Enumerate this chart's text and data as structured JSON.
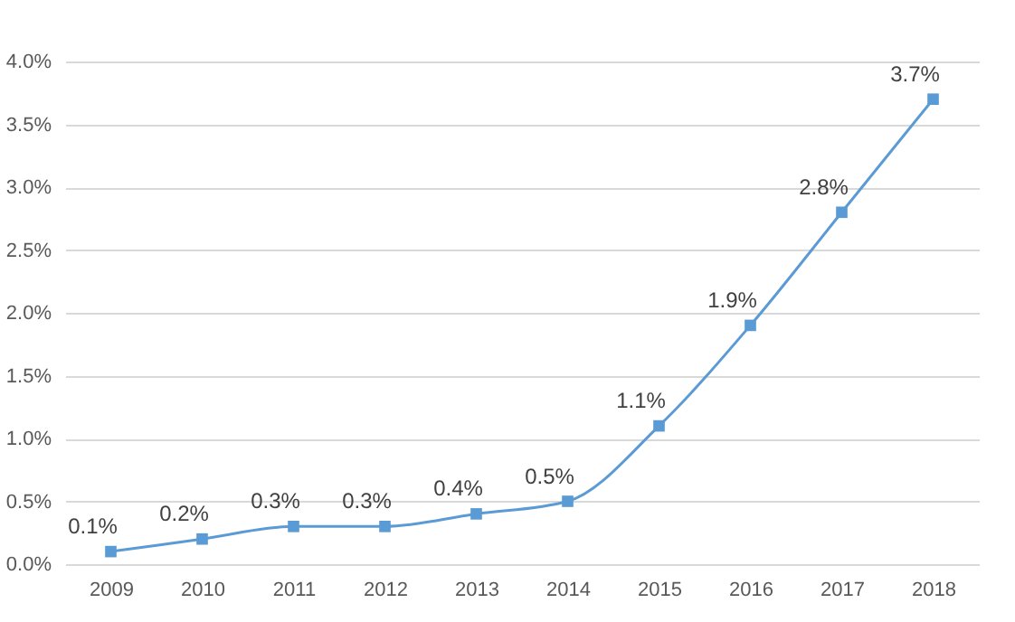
{
  "chart_data": {
    "type": "line",
    "categories": [
      "2009",
      "2010",
      "2011",
      "2012",
      "2013",
      "2014",
      "2015",
      "2016",
      "2017",
      "2018"
    ],
    "series": [
      {
        "color": "#5b9bd5",
        "values": [
          0.1,
          0.2,
          0.3,
          0.3,
          0.4,
          0.5,
          1.1,
          1.9,
          2.8,
          3.7
        ],
        "value_labels": [
          "0.1%",
          "0.2%",
          "0.3%",
          "0.3%",
          "0.4%",
          "0.5%",
          "1.1%",
          "1.9%",
          "2.8%",
          "3.7%"
        ]
      }
    ],
    "ylim": [
      0,
      4
    ],
    "yticks": [
      {
        "value": 0,
        "label": "0.0%"
      },
      {
        "value": 0.5,
        "label": "0.5%"
      },
      {
        "value": 1,
        "label": "1.0%"
      },
      {
        "value": 1.5,
        "label": "1.5%"
      },
      {
        "value": 2,
        "label": "2.0%"
      },
      {
        "value": 2.5,
        "label": "2.5%"
      },
      {
        "value": 3,
        "label": "3.0%"
      },
      {
        "value": 3.5,
        "label": "3.5%"
      },
      {
        "value": 4,
        "label": "4.0%"
      }
    ],
    "grid": "y",
    "marker": "square",
    "line_style": "solid"
  }
}
